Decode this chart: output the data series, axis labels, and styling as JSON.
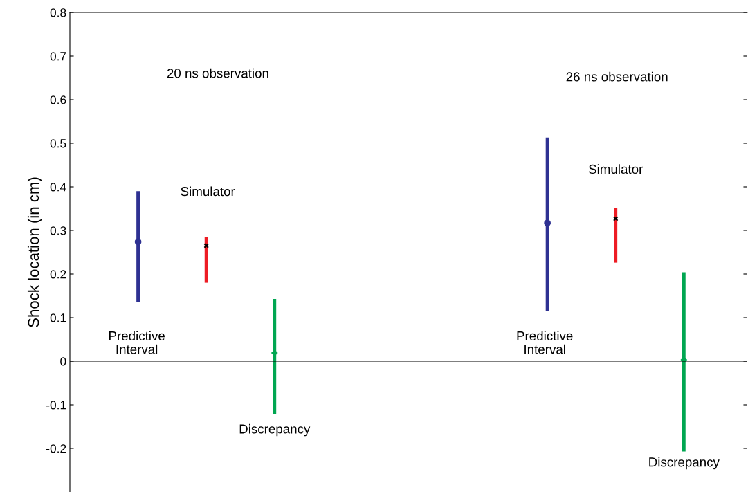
{
  "chart_data": {
    "type": "scatter",
    "ylabel": "Shock location (in cm)",
    "categories": [
      null,
      null,
      null,
      null,
      null,
      null,
      null,
      null,
      null
    ],
    "series": [
      {
        "color": "#2e3192",
        "marker": "circle",
        "values": [
          0.274,
          null,
          null,
          null,
          null,
          null,
          0.317,
          null,
          null
        ],
        "errors": [
          [
            0.135,
            0.39
          ],
          null,
          null,
          null,
          null,
          null,
          [
            0.116,
            0.513
          ],
          null,
          null
        ]
      },
      {
        "color": "#ed1c24",
        "marker": "cross",
        "colors": [
          null,
          "#000000",
          null,
          null,
          null,
          null,
          null,
          "#000000",
          null
        ],
        "values": [
          null,
          0.265,
          null,
          null,
          null,
          null,
          null,
          0.327,
          null
        ],
        "errors": [
          null,
          [
            0.18,
            0.285
          ],
          null,
          null,
          null,
          null,
          null,
          [
            0.226,
            0.352
          ],
          null
        ]
      },
      {
        "color": "#00a651",
        "marker": "diamond",
        "values": [
          null,
          null,
          0.019,
          null,
          null,
          null,
          null,
          null,
          0.003
        ],
        "errors": [
          null,
          null,
          [
            -0.121,
            0.143
          ],
          null,
          null,
          null,
          null,
          null,
          [
            -0.207,
            0.204
          ]
        ]
      }
    ],
    "ylim": [
      -0.3,
      0.8
    ],
    "yticks": [
      {
        "value": -0.2,
        "label": "-0.2"
      },
      {
        "value": -0.1,
        "label": "-0.1"
      },
      0,
      0.1,
      0.2,
      0.3,
      0.4,
      0.5,
      0.6,
      0.7,
      0.8
    ],
    "tick_labels": "y",
    "grid": false,
    "legend": false,
    "ref_lines": [
      {
        "axis": "y",
        "value": 0,
        "color": "#000000"
      }
    ],
    "annotations": [
      "20 ns observation",
      "26 ns observation",
      "Simulator",
      "Simulator",
      "Predictive\nInterval",
      "Predictive\nInterval",
      "Discrepancy",
      "Discrepancy"
    ]
  }
}
